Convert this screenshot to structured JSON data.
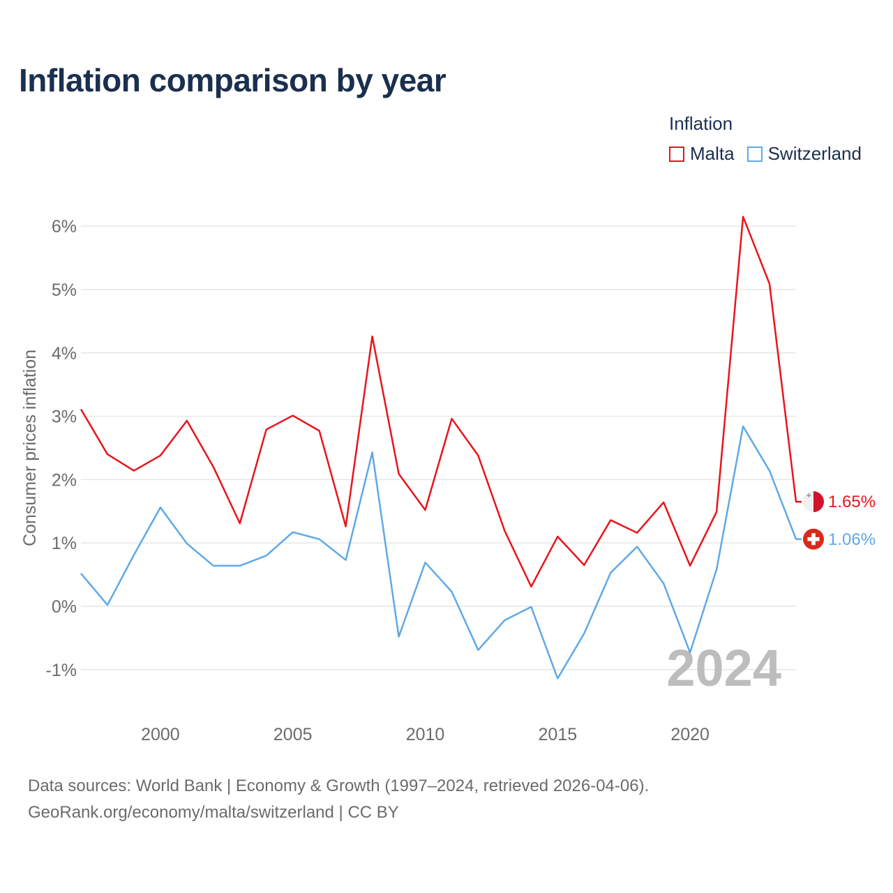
{
  "title": "Inflation comparison by year",
  "legend": {
    "title": "Inflation",
    "items": [
      {
        "name": "Malta",
        "color": "#e8141b"
      },
      {
        "name": "Switzerland",
        "color": "#5ea9e6"
      }
    ]
  },
  "footer": {
    "line1": "Data sources: World Bank | Economy & Growth (1997–2024, retrieved 2026-04-06).",
    "line2": "GeoRank.org/economy/malta/switzerland | CC BY"
  },
  "chart_data": {
    "type": "line",
    "title": "Inflation comparison by year",
    "xlabel": "",
    "ylabel": "Consumer prices inflation",
    "xlim": [
      1997,
      2024
    ],
    "ylim": [
      -1.5,
      6.5
    ],
    "y_ticks": [
      -1,
      0,
      1,
      2,
      3,
      4,
      5,
      6
    ],
    "y_tick_labels": [
      "-1%",
      "0%",
      "1%",
      "2%",
      "3%",
      "4%",
      "5%",
      "6%"
    ],
    "x_ticks": [
      2000,
      2005,
      2010,
      2015,
      2020
    ],
    "x_tick_labels": [
      "2000",
      "2005",
      "2010",
      "2015",
      "2020"
    ],
    "grid": true,
    "watermark_year": "2024",
    "x": [
      1997,
      1998,
      1999,
      2000,
      2001,
      2002,
      2003,
      2004,
      2005,
      2006,
      2007,
      2008,
      2009,
      2010,
      2011,
      2012,
      2013,
      2014,
      2015,
      2016,
      2017,
      2018,
      2019,
      2020,
      2021,
      2022,
      2023,
      2024
    ],
    "series": [
      {
        "name": "Malta",
        "color": "#e8141b",
        "values": [
          3.11,
          2.4,
          2.14,
          2.38,
          2.93,
          2.2,
          1.31,
          2.79,
          3.01,
          2.77,
          1.26,
          4.26,
          2.09,
          1.52,
          2.96,
          2.38,
          1.19,
          0.31,
          1.1,
          0.65,
          1.36,
          1.16,
          1.64,
          0.64,
          1.49,
          6.15,
          5.09,
          1.65
        ],
        "end_label": "1.65%"
      },
      {
        "name": "Switzerland",
        "color": "#5ea9e6",
        "values": [
          0.52,
          0.02,
          0.81,
          1.56,
          0.99,
          0.64,
          0.64,
          0.8,
          1.17,
          1.06,
          0.73,
          2.43,
          -0.48,
          0.69,
          0.23,
          -0.69,
          -0.22,
          -0.01,
          -1.14,
          -0.43,
          0.53,
          0.94,
          0.36,
          -0.73,
          0.58,
          2.84,
          2.14,
          1.06
        ],
        "end_label": "1.06%"
      }
    ]
  }
}
